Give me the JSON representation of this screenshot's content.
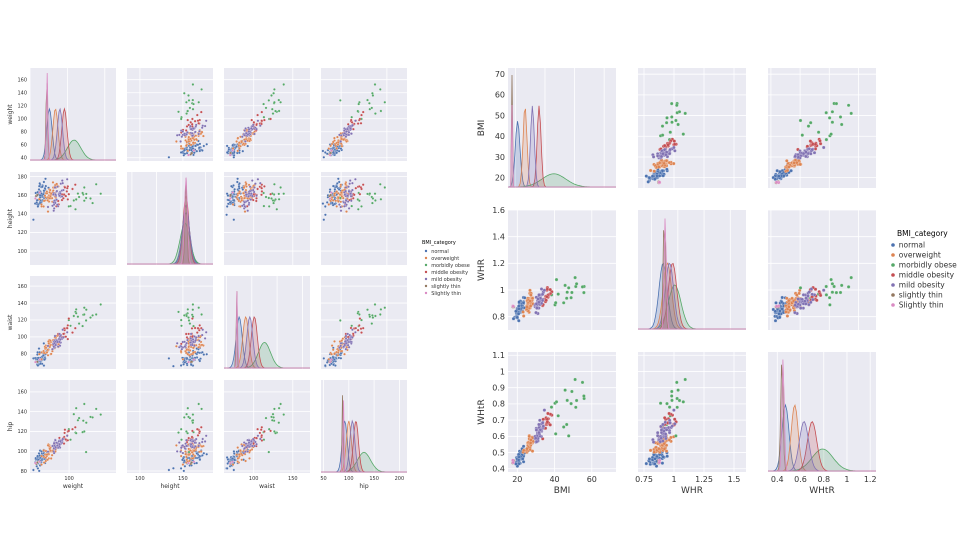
{
  "colors": {
    "normal": "#4c72b0",
    "overweight": "#dd8452",
    "morbidly obese": "#55a868",
    "middle obesity": "#c44e52",
    "mild obesity": "#8172b3",
    "slightly thin": "#937860",
    "Slightly thin": "#da8bc3",
    "panel_bg": "#eaeaf2",
    "grid": "#ffffff"
  },
  "legend_title": "BMI_category",
  "categories": [
    "normal",
    "overweight",
    "morbidly obese",
    "middle obesity",
    "mild obesity",
    "slightly thin",
    "Slightly thin"
  ],
  "chart_data": [
    {
      "type": "scatter",
      "kind": "pairplot",
      "variables": [
        "weight",
        "height",
        "waist",
        "hip"
      ],
      "hue": "BMI_category",
      "hue_order": [
        "normal",
        "overweight",
        "morbidly obese",
        "middle obesity",
        "mild obesity",
        "slightly thin",
        "Slightly thin"
      ],
      "legend_title": "BMI_category",
      "legend_position": "right",
      "ranges": {
        "weight": [
          35,
          178
        ],
        "height": [
          85,
          185
        ],
        "waist": [
          62,
          172
        ],
        "hip": [
          78,
          172
        ]
      },
      "xticks": {
        "weight": [
          0,
          100,
          200
        ],
        "height": [
          50,
          100,
          150,
          200
        ],
        "waist": [
          50,
          100,
          150,
          200
        ],
        "hip": [
          50,
          100,
          150,
          200
        ]
      },
      "yticks": {
        "weight": [
          40,
          60,
          80,
          100,
          120,
          140,
          160
        ],
        "height": [
          100,
          120,
          140,
          160,
          180
        ],
        "waist": [
          80,
          100,
          120,
          140,
          160
        ],
        "hip": [
          80,
          100,
          120,
          140,
          160
        ]
      },
      "diag_xlim": {
        "weight": [
          0,
          230
        ],
        "height": [
          40,
          215
        ],
        "waist": [
          45,
          215
        ],
        "hip": [
          45,
          215
        ]
      },
      "clusters": {
        "normal": {
          "weight": [
            52,
            7
          ],
          "height": [
            160,
            8
          ],
          "waist": [
            75,
            6
          ],
          "hip": [
            92,
            5
          ]
        },
        "overweight": {
          "weight": [
            68,
            7
          ],
          "height": [
            160,
            7
          ],
          "waist": [
            88,
            6
          ],
          "hip": [
            100,
            5
          ]
        },
        "morbidly obese": {
          "weight": [
            118,
            18
          ],
          "height": [
            158,
            10
          ],
          "waist": [
            125,
            12
          ],
          "hip": [
            130,
            13
          ]
        },
        "middle obesity": {
          "weight": [
            92,
            7
          ],
          "height": [
            160,
            6
          ],
          "waist": [
            105,
            6
          ],
          "hip": [
            114,
            5
          ]
        },
        "mild obesity": {
          "weight": [
            80,
            7
          ],
          "height": [
            160,
            7
          ],
          "waist": [
            96,
            6
          ],
          "hip": [
            107,
            5
          ]
        },
        "slightly thin": {
          "weight": [
            45,
            2
          ],
          "height": [
            160,
            2
          ],
          "waist": [
            70,
            1
          ],
          "hip": [
            88,
            1
          ]
        },
        "Slightly thin": {
          "weight": [
            46,
            2
          ],
          "height": [
            160,
            3
          ],
          "waist": [
            71,
            1
          ],
          "hip": [
            89,
            1
          ]
        }
      }
    },
    {
      "type": "scatter",
      "kind": "pairplot",
      "variables": [
        "BMI",
        "WHR",
        "WHtR"
      ],
      "hue": "BMI_category",
      "hue_order": [
        "normal",
        "overweight",
        "morbidly obese",
        "middle obesity",
        "mild obesity",
        "slightly thin",
        "Slightly thin"
      ],
      "legend_title": "BMI_category",
      "legend_position": "right",
      "ranges": {
        "BMI": [
          15,
          73
        ],
        "WHR": [
          0.7,
          1.6
        ],
        "WHtR": [
          0.38,
          1.12
        ]
      },
      "xticks": {
        "BMI": [
          20,
          40,
          60,
          80
        ],
        "WHR": [
          0.75,
          1.0,
          1.25,
          1.5
        ],
        "WHtR": [
          0.4,
          0.6,
          0.8,
          1.0,
          1.2
        ]
      },
      "yticks": {
        "BMI": [
          20,
          30,
          40,
          50,
          60,
          70
        ],
        "WHR": [
          0.8,
          1.0,
          1.2,
          1.4,
          1.6
        ],
        "WHtR": [
          0.4,
          0.5,
          0.6,
          0.7,
          0.8,
          0.9,
          1.0,
          1.1
        ]
      },
      "diag_xlim": {
        "BMI": [
          15,
          88
        ],
        "WHR": [
          0.62,
          1.65
        ],
        "WHtR": [
          0.32,
          1.25
        ]
      },
      "clusters": {
        "normal": {
          "BMI": [
            21.5,
            1.6
          ],
          "WHR": [
            0.86,
            0.04
          ],
          "WHtR": [
            0.47,
            0.03
          ]
        },
        "overweight": {
          "BMI": [
            26.5,
            1.3
          ],
          "WHR": [
            0.9,
            0.04
          ],
          "WHtR": [
            0.55,
            0.03
          ]
        },
        "morbidly obese": {
          "BMI": [
            46,
            8
          ],
          "WHR": [
            0.97,
            0.06
          ],
          "WHtR": [
            0.79,
            0.09
          ]
        },
        "middle obesity": {
          "BMI": [
            36,
            1.3
          ],
          "WHR": [
            0.95,
            0.04
          ],
          "WHtR": [
            0.7,
            0.04
          ]
        },
        "mild obesity": {
          "BMI": [
            31.5,
            1.3
          ],
          "WHR": [
            0.92,
            0.04
          ],
          "WHtR": [
            0.63,
            0.04
          ]
        },
        "slightly thin": {
          "BMI": [
            17.7,
            0.2
          ],
          "WHR": [
            0.87,
            0.01
          ],
          "WHtR": [
            0.44,
            0.01
          ]
        },
        "Slightly thin": {
          "BMI": [
            17.9,
            0.2
          ],
          "WHR": [
            0.88,
            0.01
          ],
          "WHtR": [
            0.45,
            0.01
          ]
        }
      }
    }
  ]
}
